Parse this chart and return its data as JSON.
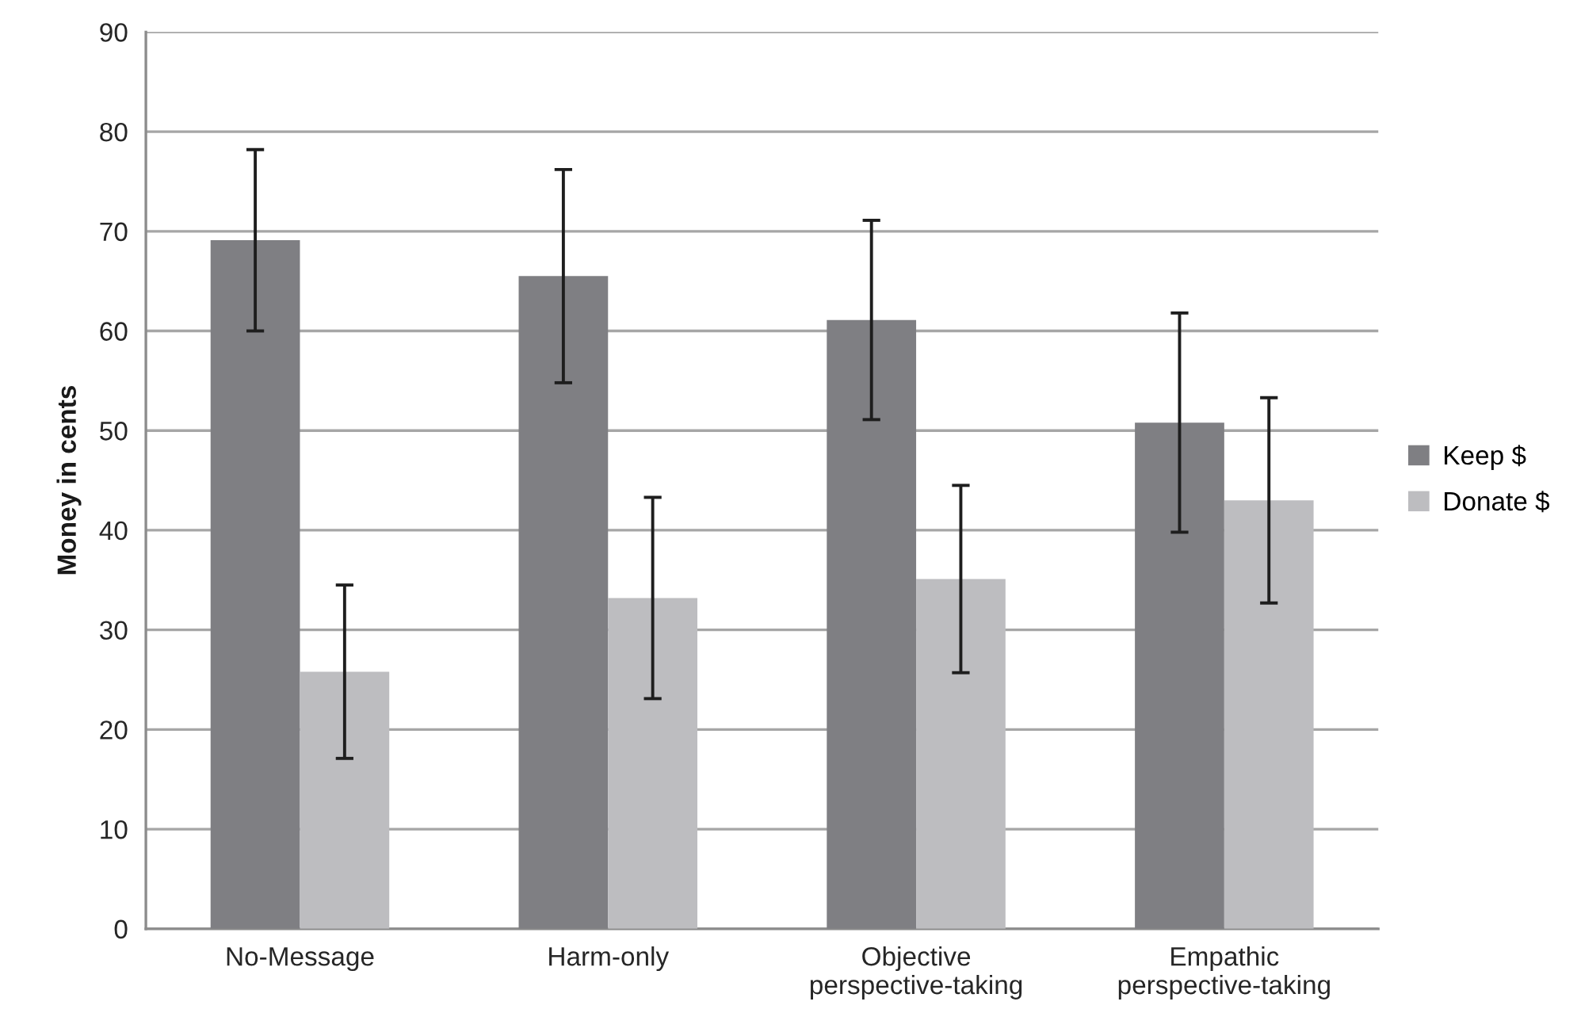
{
  "chart_data": {
    "type": "bar",
    "ylabel": "Money in cents",
    "categories": [
      "No-Message",
      "Harm-only",
      "Objective\nperspective-taking",
      "Empathic\nperspective-taking"
    ],
    "series": [
      {
        "name": "Keep $",
        "color": "#7f7f83",
        "values": [
          69.1,
          65.5,
          61.1,
          50.8
        ],
        "errors": [
          9.1,
          10.7,
          10.0,
          11.0
        ]
      },
      {
        "name": "Donate $",
        "color": "#bdbdc0",
        "values": [
          25.8,
          33.2,
          35.1,
          43.0
        ],
        "errors": [
          8.7,
          10.1,
          9.4,
          10.3
        ]
      }
    ],
    "ylim": [
      0,
      90
    ],
    "yticks": [
      0,
      10,
      20,
      30,
      40,
      50,
      60,
      70,
      80,
      90
    ],
    "grid": "y",
    "legend": "right"
  }
}
